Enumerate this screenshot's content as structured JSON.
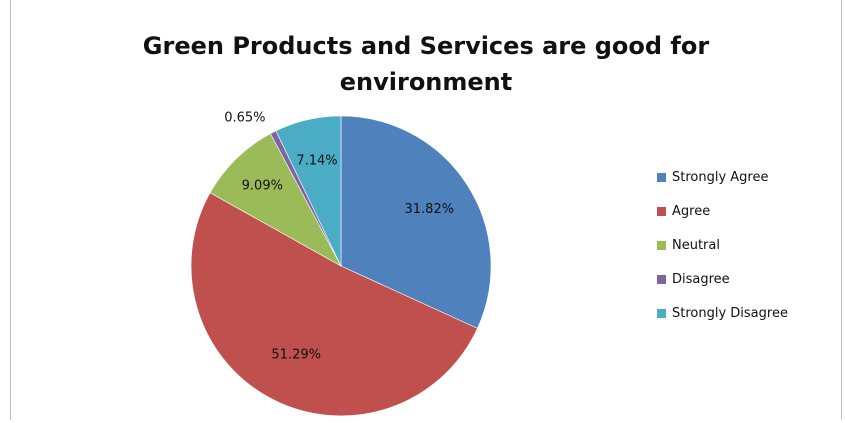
{
  "chart_data": {
    "type": "pie",
    "title_lines": [
      "Green Products and Services  are good for",
      "environment"
    ],
    "categories": [
      "Strongly Agree",
      "Agree",
      "Neutral",
      "Disagree",
      "Strongly Disagree"
    ],
    "values": [
      31.82,
      51.29,
      9.09,
      0.65,
      7.14
    ],
    "labels": [
      "31.82%",
      "51.29%",
      "9.09%",
      "0.65%",
      "7.14%"
    ],
    "colors": [
      "#4F81BD",
      "#C0504D",
      "#9BBB59",
      "#8064A2",
      "#4BACC6"
    ],
    "legend_position": "right",
    "start_angle": "12 o'clock",
    "direction": "clockwise"
  }
}
